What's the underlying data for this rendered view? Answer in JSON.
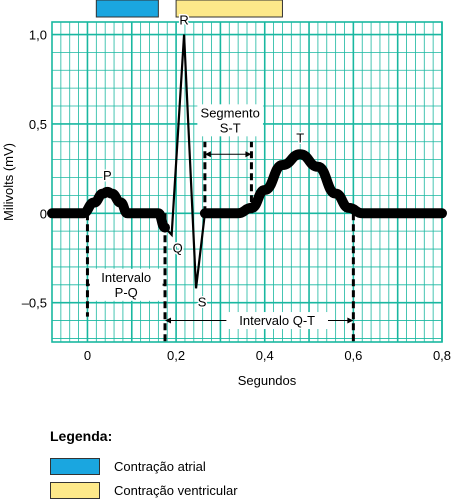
{
  "chart_data": {
    "type": "line",
    "xlabel": "Segundos",
    "ylabel": "Milivolts (mV)",
    "xlim": [
      -0.08,
      0.8
    ],
    "ylim": [
      -0.72,
      1.07
    ],
    "xticks": [
      0,
      0.2,
      0.4,
      0.6,
      0.8
    ],
    "xtick_labels": [
      "0",
      "0,2",
      "0,4",
      "0,6",
      "0,8"
    ],
    "yticks": [
      1.0,
      0.5,
      0,
      -0.5
    ],
    "ytick_labels": [
      "1,0",
      "0,5",
      "0",
      "–0,5"
    ],
    "grid": true,
    "series": [
      {
        "x": [
          -0.08,
          -0.01,
          0.015,
          0.035,
          0.045,
          0.055,
          0.075,
          0.09,
          0.16,
          0.175,
          0.19,
          0.218,
          0.245,
          0.265,
          0.34,
          0.37,
          0.4,
          0.44,
          0.48,
          0.52,
          0.56,
          0.59,
          0.62,
          0.8
        ],
        "y": [
          0,
          0,
          0.06,
          0.11,
          0.12,
          0.11,
          0.06,
          0,
          0,
          -0.08,
          -0.12,
          1.0,
          -0.42,
          0,
          0,
          0.03,
          0.13,
          0.27,
          0.33,
          0.26,
          0.11,
          0.03,
          0,
          0
        ]
      }
    ],
    "annotations": [
      {
        "text": "P",
        "x": 0.045,
        "y": 0.12
      },
      {
        "text": "Q",
        "x": 0.19,
        "y": -0.12
      },
      {
        "text": "R",
        "x": 0.218,
        "y": 1.0
      },
      {
        "text": "S",
        "x": 0.245,
        "y": -0.42
      },
      {
        "text": "T",
        "x": 0.48,
        "y": 0.33
      }
    ],
    "intervals": [
      {
        "label": [
          "Intervalo",
          "P-Q"
        ],
        "x_start": 0.0,
        "x_end": 0.175
      },
      {
        "label": [
          "Intervalo Q-T"
        ],
        "x_start": 0.175,
        "x_end": 0.6
      },
      {
        "label": [
          "Segmento",
          "S-T"
        ],
        "x_start": 0.265,
        "x_end": 0.37
      }
    ],
    "phases": [
      {
        "name": "Contração atrial",
        "x_start": 0.02,
        "x_end": 0.16,
        "color": "#1aa6e0"
      },
      {
        "name": "Contração ventricular",
        "x_start": 0.2,
        "x_end": 0.44,
        "color": "#fde98a"
      }
    ]
  },
  "legend": {
    "title": "Legenda:",
    "items": [
      {
        "label": "Contração atrial",
        "color": "#1aa6e0"
      },
      {
        "label": "Contração ventricular",
        "color": "#fde98a"
      }
    ]
  },
  "colors": {
    "grid": "#19b7a0",
    "trace": "#000000"
  }
}
